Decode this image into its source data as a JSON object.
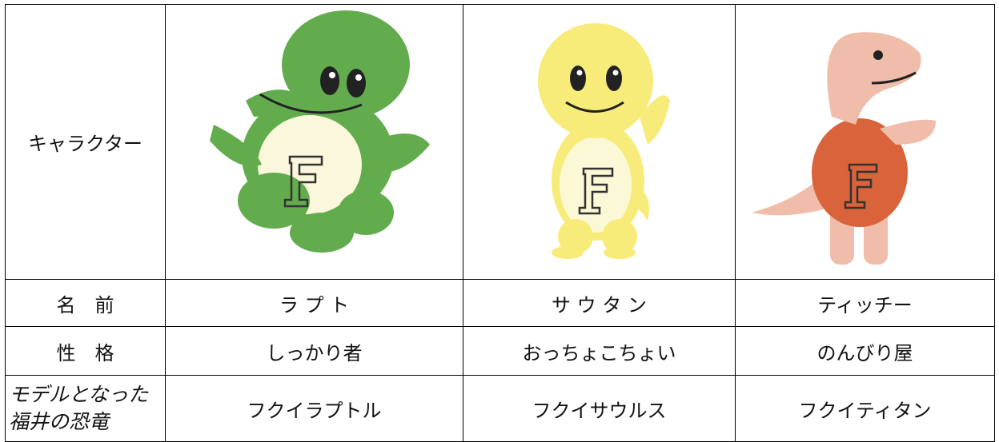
{
  "table": {
    "rows": [
      [
        "キャラクター"
      ],
      [
        "名　前",
        "ラ プ ト",
        "サ ウ タ ン",
        "ティッチー"
      ],
      [
        "性　格",
        "しっかり者",
        "おっちょこちょい",
        "のんびり屋"
      ],
      [
        "モデルとなった福井の恐竜",
        "フクイラプトル",
        "フクイサウルス",
        "フクイティタン"
      ]
    ]
  }
}
